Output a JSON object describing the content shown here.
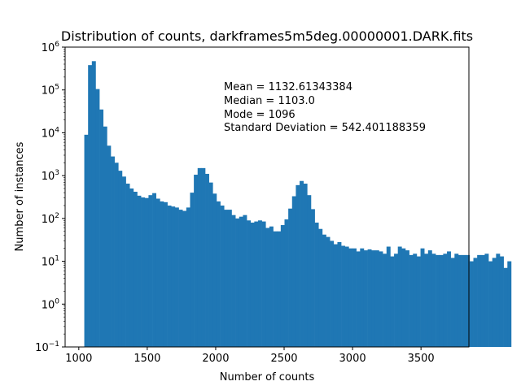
{
  "chart_data": {
    "type": "bar",
    "title": "Distribution of counts, darkframes5m5deg.00000001.DARK.fits",
    "xlabel": "Number of counts",
    "ylabel": "Number of instances",
    "yscale": "log",
    "xlim": [
      900,
      3850
    ],
    "ylim": [
      0.1,
      1000000
    ],
    "bin_start": 1040,
    "bin_width": 27.6,
    "bar_color": "#1f77b4",
    "x_ticks": [
      {
        "value": 1000,
        "label": "1000"
      },
      {
        "value": 1500,
        "label": "1500"
      },
      {
        "value": 2000,
        "label": "2000"
      },
      {
        "value": 2500,
        "label": "2500"
      },
      {
        "value": 3000,
        "label": "3000"
      },
      {
        "value": 3500,
        "label": "3500"
      }
    ],
    "y_ticks": [
      {
        "value": 0.1,
        "base": "10",
        "exp": "−1"
      },
      {
        "value": 1,
        "base": "10",
        "exp": "0"
      },
      {
        "value": 10,
        "base": "10",
        "exp": "1"
      },
      {
        "value": 100,
        "base": "10",
        "exp": "2"
      },
      {
        "value": 1000,
        "base": "10",
        "exp": "3"
      },
      {
        "value": 10000,
        "base": "10",
        "exp": "4"
      },
      {
        "value": 100000,
        "base": "10",
        "exp": "5"
      },
      {
        "value": 1000000,
        "base": "10",
        "exp": "6"
      }
    ],
    "values": [
      9000,
      380000,
      470000,
      105000,
      35000,
      14000,
      5000,
      2800,
      2000,
      1300,
      950,
      650,
      500,
      420,
      340,
      310,
      300,
      350,
      390,
      290,
      250,
      240,
      200,
      190,
      180,
      160,
      150,
      180,
      400,
      1050,
      1500,
      1500,
      1100,
      690,
      380,
      250,
      200,
      160,
      160,
      120,
      100,
      110,
      120,
      90,
      80,
      85,
      90,
      85,
      60,
      65,
      50,
      50,
      70,
      95,
      170,
      330,
      600,
      750,
      650,
      350,
      165,
      80,
      57,
      42,
      37,
      30,
      25,
      28,
      23,
      22,
      20,
      20,
      17,
      20,
      18,
      19,
      18,
      18,
      17,
      15,
      22,
      13,
      15,
      22,
      20,
      18,
      14,
      15,
      13,
      20,
      15,
      18,
      15,
      14,
      14,
      15,
      17,
      12,
      15,
      14,
      14,
      14,
      10,
      12,
      14,
      14,
      15,
      10,
      12,
      15,
      13,
      7,
      10
    ],
    "annotations": [
      "Mean = 1132.61343384",
      "Median = 1103.0",
      "Mode = 1096",
      "Standard Deviation = 542.401188359"
    ]
  }
}
